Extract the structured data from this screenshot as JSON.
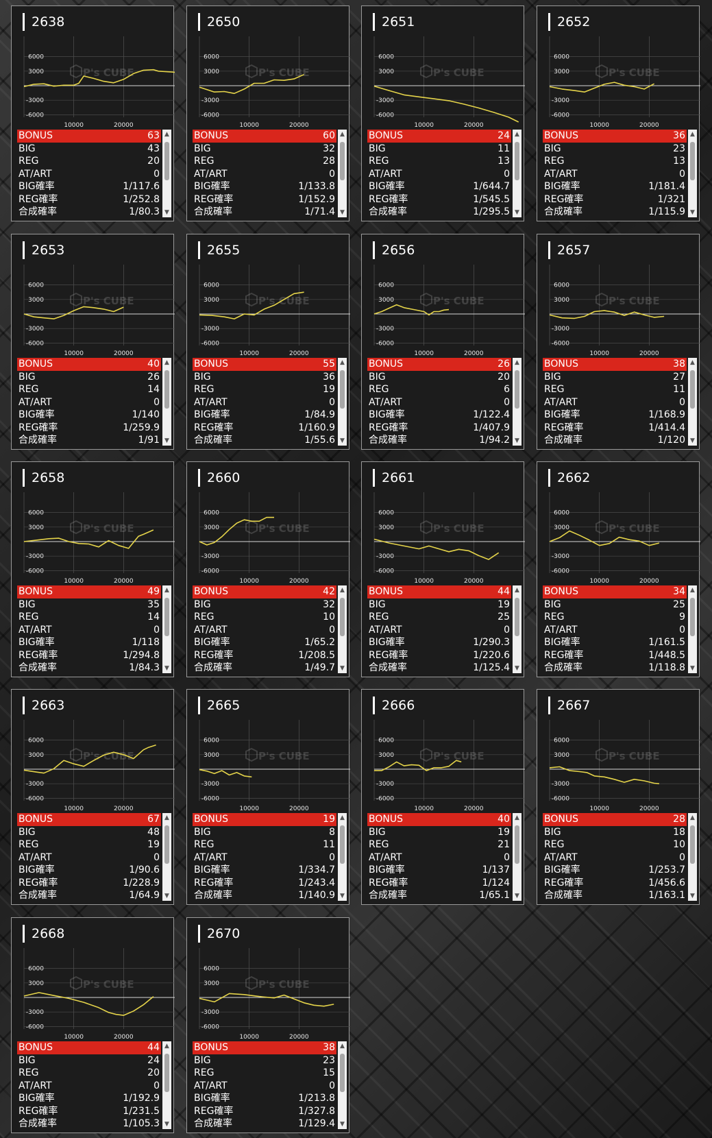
{
  "colors": {
    "bonus_bar": "#d9261c",
    "line": "#e5d44a",
    "background": "#1c1c1c"
  },
  "watermark": "P's CUBE",
  "stat_labels": [
    "BONUS",
    "BIG",
    "REG",
    "AT/ART",
    "BIG確率",
    "REG確率",
    "合成確率"
  ],
  "chart_data": [
    {
      "type": "line",
      "title": "2638",
      "x": [
        0,
        2000,
        4000,
        6000,
        8000,
        10000,
        11000,
        12000,
        14000,
        16000,
        18000,
        20000,
        22000,
        24000,
        26000
      ],
      "y": [
        -200,
        300,
        400,
        -100,
        100,
        100,
        500,
        2000,
        1500,
        900,
        600,
        1300,
        2500,
        3200,
        3300
      ],
      "extra": {
        "x": [
          27000,
          30000,
          33000,
          34500
        ],
        "y": [
          3000,
          2800,
          2500,
          2500
        ]
      },
      "yticks": [
        6000,
        3000,
        -3000,
        -6000
      ],
      "xticks": [
        10000,
        20000
      ],
      "stats": {
        "BONUS": "63",
        "BIG": "43",
        "REG": "20",
        "AT/ART": "0",
        "BIG確率": "1/117.6",
        "REG確率": "1/252.8",
        "合成確率": "1/80.3"
      }
    },
    {
      "type": "line",
      "title": "2650",
      "x": [
        0,
        3000,
        5000,
        7000,
        9000,
        11000,
        13000,
        15000,
        17000,
        19000,
        21000
      ],
      "y": [
        -300,
        -1300,
        -1200,
        -1600,
        -700,
        500,
        500,
        1200,
        1100,
        1400,
        2300
      ],
      "yticks": [
        6000,
        3000,
        -3000,
        -6000
      ],
      "xticks": [
        10000,
        20000
      ],
      "stats": {
        "BONUS": "60",
        "BIG": "32",
        "REG": "28",
        "AT/ART": "0",
        "BIG確率": "1/133.8",
        "REG確率": "1/152.9",
        "合成確率": "1/71.4"
      }
    },
    {
      "type": "line",
      "title": "2651",
      "x": [
        0,
        3000,
        6000,
        9000,
        12000,
        15000,
        18000,
        21000,
        24000,
        27000,
        29000
      ],
      "y": [
        -100,
        -1000,
        -1900,
        -2300,
        -2700,
        -3100,
        -3800,
        -4600,
        -5500,
        -6500,
        -7500
      ],
      "yticks": [
        6000,
        3000,
        -3000,
        -6000
      ],
      "xticks": [
        10000,
        20000
      ],
      "stats": {
        "BONUS": "24",
        "BIG": "11",
        "REG": "13",
        "AT/ART": "0",
        "BIG確率": "1/644.7",
        "REG確率": "1/545.5",
        "合成確率": "1/295.5"
      }
    },
    {
      "type": "line",
      "title": "2652",
      "x": [
        0,
        2500,
        5000,
        7000,
        9000,
        11000,
        13000,
        15000,
        17000,
        19000,
        21000
      ],
      "y": [
        -200,
        -700,
        -1000,
        -1300,
        -500,
        300,
        700,
        100,
        -200,
        -700,
        400
      ],
      "yticks": [
        6000,
        3000,
        -3000,
        -6000
      ],
      "xticks": [
        10000,
        20000
      ],
      "stats": {
        "BONUS": "36",
        "BIG": "23",
        "REG": "13",
        "AT/ART": "0",
        "BIG確率": "1/181.4",
        "REG確率": "1/321",
        "合成確率": "1/115.9"
      }
    },
    {
      "type": "line",
      "title": "2653",
      "x": [
        0,
        2000,
        4000,
        6000,
        8000,
        10000,
        12000,
        14000,
        16000,
        18000,
        20000
      ],
      "y": [
        0,
        -600,
        -800,
        -1000,
        -300,
        700,
        1500,
        1300,
        1000,
        500,
        1400
      ],
      "yticks": [
        6000,
        3000,
        -3000,
        -6000
      ],
      "xticks": [
        10000,
        20000
      ],
      "stats": {
        "BONUS": "40",
        "BIG": "26",
        "REG": "14",
        "AT/ART": "0",
        "BIG確率": "1/140",
        "REG確率": "1/259.9",
        "合成確率": "1/91"
      }
    },
    {
      "type": "line",
      "title": "2655",
      "x": [
        0,
        2500,
        5000,
        7000,
        9000,
        11000,
        13000,
        15000,
        17000,
        19000,
        21000
      ],
      "y": [
        -200,
        -300,
        -600,
        -1000,
        0,
        -200,
        1000,
        1800,
        3000,
        4200,
        4500
      ],
      "yticks": [
        6000,
        3000,
        -3000,
        -6000
      ],
      "xticks": [
        10000,
        20000
      ],
      "stats": {
        "BONUS": "55",
        "BIG": "36",
        "REG": "19",
        "AT/ART": "0",
        "BIG確率": "1/84.9",
        "REG確率": "1/160.9",
        "合成確率": "1/55.6"
      }
    },
    {
      "type": "line",
      "title": "2656",
      "x": [
        0,
        1500,
        3000,
        4500,
        6000,
        8000,
        10000,
        11000,
        12000,
        13000,
        14000,
        15000
      ],
      "y": [
        0,
        500,
        1200,
        1900,
        1300,
        900,
        500,
        -200,
        500,
        500,
        800,
        900
      ],
      "yticks": [
        6000,
        3000,
        -3000,
        -6000
      ],
      "xticks": [
        10000,
        20000
      ],
      "stats": {
        "BONUS": "26",
        "BIG": "20",
        "REG": "6",
        "AT/ART": "0",
        "BIG確率": "1/122.4",
        "REG確率": "1/407.9",
        "合成確率": "1/94.2"
      }
    },
    {
      "type": "line",
      "title": "2657",
      "x": [
        0,
        2500,
        5000,
        7000,
        9000,
        11000,
        13000,
        15000,
        17000,
        19000,
        21000,
        23000
      ],
      "y": [
        -200,
        -800,
        -900,
        -500,
        500,
        700,
        400,
        -300,
        400,
        -200,
        -700,
        -500
      ],
      "yticks": [
        6000,
        3000,
        -3000,
        -6000
      ],
      "xticks": [
        10000,
        20000
      ],
      "stats": {
        "BONUS": "38",
        "BIG": "27",
        "REG": "11",
        "AT/ART": "0",
        "BIG確率": "1/168.9",
        "REG確率": "1/414.4",
        "合成確率": "1/120"
      }
    },
    {
      "type": "line",
      "title": "2658",
      "x": [
        0,
        2500,
        5000,
        7000,
        9000,
        11000,
        13000,
        15000,
        17000,
        19000,
        21000,
        23000
      ],
      "y": [
        0,
        300,
        600,
        700,
        0,
        -400,
        -500,
        -1100,
        200,
        -800,
        -1400,
        1100
      ],
      "extra": {
        "x": [
          24000,
          26000
        ],
        "y": [
          1500,
          2400
        ]
      },
      "yticks": [
        6000,
        3000,
        -3000,
        -6000
      ],
      "xticks": [
        10000,
        20000
      ],
      "stats": {
        "BONUS": "49",
        "BIG": "35",
        "REG": "14",
        "AT/ART": "0",
        "BIG確率": "1/118",
        "REG確率": "1/294.8",
        "合成確率": "1/84.3"
      }
    },
    {
      "type": "line",
      "title": "2660",
      "x": [
        0,
        1500,
        3000,
        4500,
        6000,
        7500,
        9000,
        10500,
        12000,
        13500,
        15000
      ],
      "y": [
        0,
        -700,
        -200,
        1000,
        2500,
        3800,
        4500,
        4200,
        4200,
        5000,
        5000
      ],
      "yticks": [
        6000,
        3000,
        -3000,
        -6000
      ],
      "xticks": [
        10000,
        20000
      ],
      "stats": {
        "BONUS": "42",
        "BIG": "32",
        "REG": "10",
        "AT/ART": "0",
        "BIG確率": "1/65.2",
        "REG確率": "1/208.5",
        "合成確率": "1/49.7"
      }
    },
    {
      "type": "line",
      "title": "2661",
      "x": [
        0,
        3000,
        6000,
        9000,
        11000,
        13000,
        15000,
        17000,
        19000,
        21000,
        23000,
        25000
      ],
      "y": [
        500,
        -300,
        -900,
        -1500,
        -900,
        -1500,
        -2100,
        -1600,
        -1900,
        -2900,
        -3700,
        -2300
      ],
      "yticks": [
        6000,
        3000,
        -3000,
        -6000
      ],
      "xticks": [
        10000,
        20000
      ],
      "stats": {
        "BONUS": "44",
        "BIG": "19",
        "REG": "25",
        "AT/ART": "0",
        "BIG確率": "1/290.3",
        "REG確率": "1/220.6",
        "合成確率": "1/125.4"
      }
    },
    {
      "type": "line",
      "title": "2662",
      "x": [
        0,
        2000,
        4000,
        6000,
        8000,
        10000,
        12000,
        14000,
        16000,
        18000,
        20000,
        22000
      ],
      "y": [
        0,
        800,
        2200,
        1300,
        300,
        -800,
        -400,
        900,
        400,
        100,
        -800,
        -300
      ],
      "yticks": [
        6000,
        3000,
        -3000,
        -6000
      ],
      "xticks": [
        10000,
        20000
      ],
      "stats": {
        "BONUS": "34",
        "BIG": "25",
        "REG": "9",
        "AT/ART": "0",
        "BIG確率": "1/161.5",
        "REG確率": "1/448.5",
        "合成確率": "1/118.8"
      }
    },
    {
      "type": "line",
      "title": "2663",
      "x": [
        0,
        2500,
        4000,
        6000,
        8000,
        10000,
        12000,
        14000,
        16000,
        18000,
        20000,
        22000,
        24000
      ],
      "y": [
        -200,
        -600,
        -800,
        100,
        1800,
        1100,
        600,
        1800,
        2900,
        3500,
        3000,
        2200,
        4000
      ],
      "extra": {
        "x": [
          25000,
          26500
        ],
        "y": [
          4500,
          5000
        ]
      },
      "yticks": [
        6000,
        3000,
        -3000,
        -6000
      ],
      "xticks": [
        10000,
        20000
      ],
      "stats": {
        "BONUS": "67",
        "BIG": "48",
        "REG": "19",
        "AT/ART": "0",
        "BIG確率": "1/90.6",
        "REG確率": "1/228.9",
        "合成確率": "1/64.9"
      }
    },
    {
      "type": "line",
      "title": "2665",
      "x": [
        0,
        1500,
        3000,
        4500,
        6000,
        7500,
        9000,
        10500
      ],
      "y": [
        -100,
        -400,
        -900,
        -300,
        -1200,
        -700,
        -1400,
        -1600
      ],
      "yticks": [
        6000,
        3000,
        -3000,
        -6000
      ],
      "xticks": [
        10000,
        20000
      ],
      "stats": {
        "BONUS": "19",
        "BIG": "8",
        "REG": "11",
        "AT/ART": "0",
        "BIG確率": "1/334.7",
        "REG確率": "1/243.4",
        "合成確率": "1/140.9"
      }
    },
    {
      "type": "line",
      "title": "2666",
      "x": [
        0,
        1500,
        3000,
        4500,
        6000,
        7500,
        9000,
        10500,
        12000,
        13500,
        15000,
        16500,
        17500
      ],
      "y": [
        -300,
        -300,
        500,
        1500,
        700,
        900,
        800,
        -300,
        300,
        300,
        600,
        1800,
        1500
      ],
      "yticks": [
        6000,
        3000,
        -3000,
        -6000
      ],
      "xticks": [
        10000,
        20000
      ],
      "stats": {
        "BONUS": "40",
        "BIG": "19",
        "REG": "21",
        "AT/ART": "0",
        "BIG確率": "1/137",
        "REG確率": "1/124",
        "合成確率": "1/65.1"
      }
    },
    {
      "type": "line",
      "title": "2667",
      "x": [
        0,
        2000,
        4000,
        6000,
        7500,
        9000,
        11000,
        13000,
        15000,
        17000,
        19000,
        21000,
        22000
      ],
      "y": [
        300,
        500,
        -300,
        -500,
        -700,
        -1400,
        -1600,
        -2100,
        -2700,
        -2100,
        -2400,
        -2900,
        -3000
      ],
      "yticks": [
        6000,
        3000,
        -3000,
        -6000
      ],
      "xticks": [
        10000,
        20000
      ],
      "stats": {
        "BONUS": "28",
        "BIG": "18",
        "REG": "10",
        "AT/ART": "0",
        "BIG確率": "1/253.7",
        "REG確率": "1/456.6",
        "合成確率": "1/163.1"
      }
    },
    {
      "type": "line",
      "title": "2668",
      "x": [
        0,
        3000,
        6000,
        9000,
        12000,
        15000,
        17000,
        18500,
        20000,
        22000,
        24000,
        26000
      ],
      "y": [
        300,
        1000,
        400,
        -200,
        -1000,
        -2100,
        -3100,
        -3500,
        -3700,
        -2800,
        -1500,
        200
      ],
      "yticks": [
        6000,
        3000,
        -3000,
        -6000
      ],
      "xticks": [
        10000,
        20000
      ],
      "stats": {
        "BONUS": "44",
        "BIG": "24",
        "REG": "20",
        "AT/ART": "0",
        "BIG確率": "1/192.9",
        "REG確率": "1/231.5",
        "合成確率": "1/105.3"
      }
    },
    {
      "type": "line",
      "title": "2670",
      "x": [
        0,
        3000,
        6000,
        9000,
        12000,
        15000,
        17000,
        19000,
        21000,
        23000,
        25000,
        27000
      ],
      "y": [
        -200,
        -900,
        800,
        600,
        200,
        -100,
        500,
        -300,
        -1100,
        -1600,
        -1800,
        -1400
      ],
      "yticks": [
        6000,
        3000,
        -3000,
        -6000
      ],
      "xticks": [
        10000,
        20000
      ],
      "stats": {
        "BONUS": "38",
        "BIG": "23",
        "REG": "15",
        "AT/ART": "0",
        "BIG確率": "1/213.8",
        "REG確率": "1/327.8",
        "合成確率": "1/129.4"
      }
    }
  ]
}
